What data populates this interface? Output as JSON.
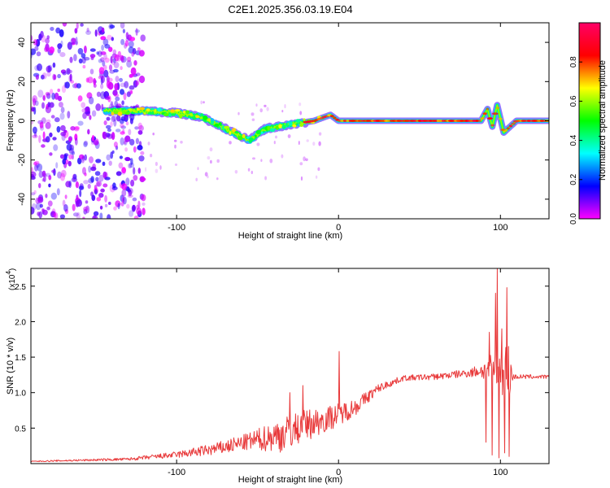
{
  "title": "C2E1.2025.356.03.19.E04",
  "chart_data": [
    {
      "type": "heatmap",
      "xlabel": "Height of straight line (km)",
      "ylabel": "Frequency (Hz)",
      "xlim": [
        -190,
        130
      ],
      "ylim": [
        -50,
        50
      ],
      "xticks": [
        -100,
        0,
        100
      ],
      "yticks": [
        -40,
        -20,
        0,
        20,
        40
      ],
      "colorbar": {
        "label": "Normalized spectral amplitude",
        "range": [
          0,
          1
        ],
        "ticks": [
          "0.0",
          "0.2",
          "0.4",
          "0.6",
          "0.8"
        ],
        "colormap": [
          "#ff00ff",
          "#0000ff",
          "#00ffff",
          "#00ff00",
          "#ffff00",
          "#ff0000",
          "#ff0066"
        ]
      },
      "ridge": [
        {
          "x": -140,
          "y": 5
        },
        {
          "x": -120,
          "y": 5
        },
        {
          "x": -100,
          "y": 4
        },
        {
          "x": -85,
          "y": 2
        },
        {
          "x": -70,
          "y": -4
        },
        {
          "x": -55,
          "y": -10
        },
        {
          "x": -45,
          "y": -4
        },
        {
          "x": -30,
          "y": -2
        },
        {
          "x": -15,
          "y": 0
        },
        {
          "x": -5,
          "y": 3
        },
        {
          "x": 0,
          "y": 0
        },
        {
          "x": 30,
          "y": 0
        },
        {
          "x": 60,
          "y": 0
        },
        {
          "x": 88,
          "y": 0
        },
        {
          "x": 92,
          "y": 6
        },
        {
          "x": 95,
          "y": -3
        },
        {
          "x": 98,
          "y": 8
        },
        {
          "x": 102,
          "y": -6
        },
        {
          "x": 110,
          "y": 0
        },
        {
          "x": 130,
          "y": 0
        }
      ]
    },
    {
      "type": "line",
      "xlabel": "Height of straight line (km)",
      "ylabel": "SNR (10 * v/v)",
      "scale_label": "(x10",
      "scale_exp": "4",
      "scale_close": ")",
      "xlim": [
        -190,
        130
      ],
      "ylim": [
        0,
        27500
      ],
      "xticks": [
        -100,
        0,
        100
      ],
      "yticks": [
        "0.5",
        "1.0",
        "1.5",
        "2.0",
        "2.5"
      ],
      "ytick_values": [
        5000,
        10000,
        15000,
        20000,
        25000
      ],
      "line_color": "#e8393a",
      "envelope": [
        {
          "x": -190,
          "base": 300,
          "amp": 150
        },
        {
          "x": -130,
          "base": 600,
          "amp": 400
        },
        {
          "x": -100,
          "base": 1200,
          "amp": 900
        },
        {
          "x": -75,
          "base": 2000,
          "amp": 1800
        },
        {
          "x": -55,
          "base": 3000,
          "amp": 2500
        },
        {
          "x": -35,
          "base": 3800,
          "amp": 5000
        },
        {
          "x": -20,
          "base": 5200,
          "amp": 4500
        },
        {
          "x": -5,
          "base": 6300,
          "amp": 3500
        },
        {
          "x": 10,
          "base": 7800,
          "amp": 2500
        },
        {
          "x": 25,
          "base": 10600,
          "amp": 1200
        },
        {
          "x": 40,
          "base": 12000,
          "amp": 800
        },
        {
          "x": 60,
          "base": 12200,
          "amp": 900
        },
        {
          "x": 80,
          "base": 12700,
          "amp": 1200
        },
        {
          "x": 88,
          "base": 13000,
          "amp": 2000
        },
        {
          "x": 105,
          "base": 12500,
          "amp": 9000
        },
        {
          "x": 108,
          "base": 12200,
          "amp": 700
        },
        {
          "x": 130,
          "base": 12200,
          "amp": 500
        }
      ],
      "spikes": [
        {
          "x": 0.5,
          "y": 15800
        },
        {
          "x": 1.3,
          "y": 7000
        },
        {
          "x": -30,
          "y": 10000
        },
        {
          "x": -22,
          "y": 11000
        },
        {
          "x": 91,
          "y": 3000
        },
        {
          "x": 93,
          "y": 18500
        },
        {
          "x": 95,
          "y": 1200
        },
        {
          "x": 97,
          "y": 24000
        },
        {
          "x": 98,
          "y": 27500
        },
        {
          "x": 99,
          "y": 800
        },
        {
          "x": 101,
          "y": 19000
        },
        {
          "x": 102.5,
          "y": 1500
        },
        {
          "x": 104,
          "y": 24800
        },
        {
          "x": 105.5,
          "y": 1000
        }
      ]
    }
  ]
}
